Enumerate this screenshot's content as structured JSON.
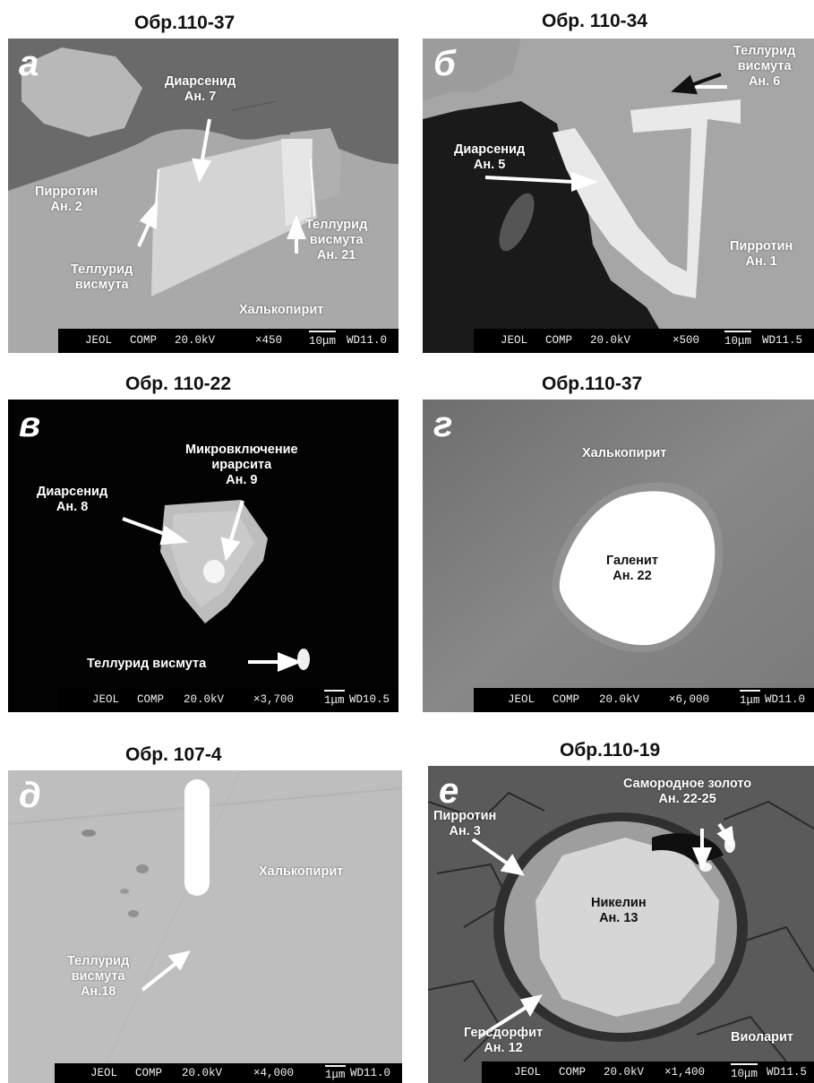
{
  "panels": [
    {
      "id": "a",
      "title": "Обр.110-37",
      "letter": "а",
      "bar": {
        "brand": "JEOL",
        "mode": "COMP",
        "kv": "20.0kV",
        "mag": "×450",
        "scale": "10μm",
        "wd": "WD11.0"
      },
      "labels": [
        [
          "Диарсенид",
          "Ан. 7"
        ],
        [
          "Пирротин",
          "Ан. 2"
        ],
        [
          "Теллурид",
          "висмута"
        ],
        [
          "Теллурид",
          "висмута",
          "Ан. 21"
        ],
        [
          "Халькопирит"
        ]
      ]
    },
    {
      "id": "b",
      "title": "Обр. 110-34",
      "letter": "б",
      "bar": {
        "brand": "JEOL",
        "mode": "COMP",
        "kv": "20.0kV",
        "mag": "×500",
        "scale": "10μm",
        "wd": "WD11.5"
      },
      "labels": [
        [
          "Теллурид",
          "висмута",
          "Ан. 6"
        ],
        [
          "Диарсенид",
          "Ан. 5"
        ],
        [
          "Пирротин",
          "Ан. 1"
        ]
      ]
    },
    {
      "id": "v",
      "title": "Обр. 110-22",
      "letter": "в",
      "bar": {
        "brand": "JEOL",
        "mode": "COMP",
        "kv": "20.0kV",
        "mag": "×3,700",
        "scale": "1μm",
        "wd": "WD10.5"
      },
      "labels": [
        [
          "Микровключение",
          "ирарсита",
          "Ан. 9"
        ],
        [
          "Диарсенид",
          "Ан. 8"
        ],
        [
          "Теллурид висмута"
        ]
      ]
    },
    {
      "id": "g",
      "title": "Обр.110-37",
      "letter": "г",
      "bar": {
        "brand": "JEOL",
        "mode": "COMP",
        "kv": "20.0kV",
        "mag": "×6,000",
        "scale": "1μm",
        "wd": "WD11.0"
      },
      "labels": [
        [
          "Халькопирит"
        ],
        [
          "Галенит",
          "Ан. 22"
        ]
      ]
    },
    {
      "id": "d",
      "title": "Обр. 107-4",
      "letter": "д",
      "bar": {
        "brand": "JEOL",
        "mode": "COMP",
        "kv": "20.0kV",
        "mag": "×4,000",
        "scale": "1μm",
        "wd": "WD11.0"
      },
      "labels": [
        [
          "Халькопирит"
        ],
        [
          "Теллурид",
          "висмута",
          "Ан.18"
        ]
      ]
    },
    {
      "id": "e",
      "title": "Обр.110-19",
      "letter": "е",
      "bar": {
        "brand": "JEOL",
        "mode": "COMP",
        "kv": "20.0kV",
        "mag": "×1,400",
        "scale": "10μm",
        "wd": "WD11.5"
      },
      "labels": [
        [
          "Самородное золото",
          "Ан. 22-25"
        ],
        [
          "Пирротин",
          "Ан. 3"
        ],
        [
          "Никелин",
          "Ан. 13"
        ],
        [
          "Герсдорфит",
          "Ан. 12"
        ],
        [
          "Виоларит"
        ]
      ]
    }
  ],
  "colors": {
    "arrow": "#ffffff",
    "background": "#ffffff",
    "scale_bar": "#000000"
  }
}
